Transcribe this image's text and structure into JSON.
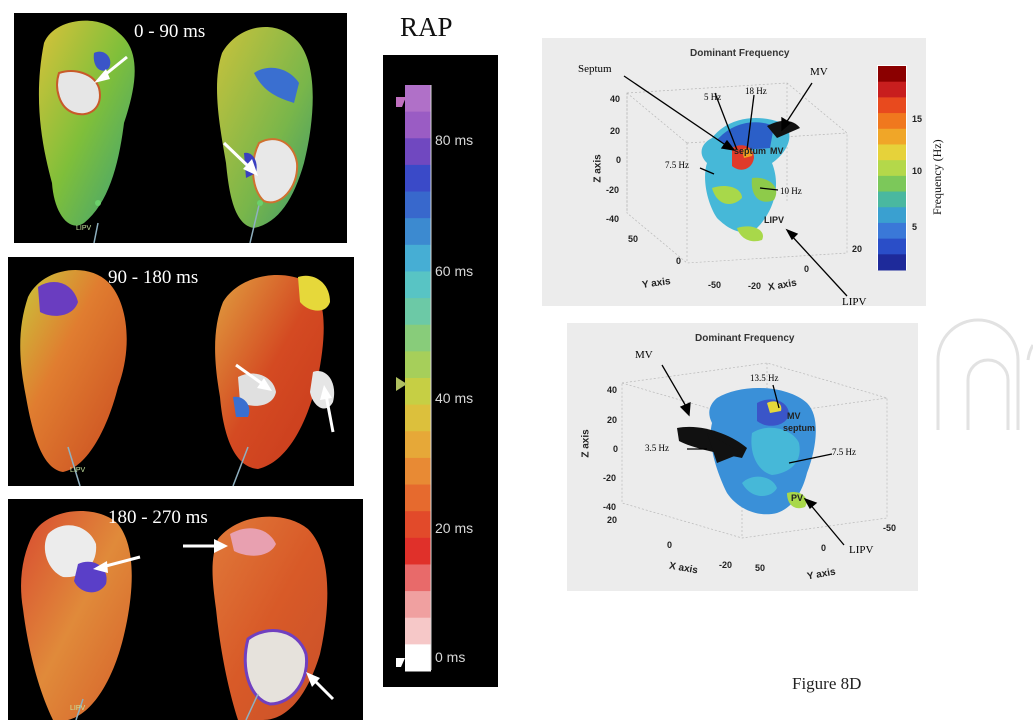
{
  "activation_panels": [
    {
      "time_label": "0 - 90 ms",
      "lipv_tag": "LIPV"
    },
    {
      "time_label": "90 - 180 ms",
      "lipv_tag": "LIPV"
    },
    {
      "time_label": "180 - 270 ms",
      "lipv_tag": "LIPV"
    }
  ],
  "rap_scale": {
    "title": "RAP",
    "ticks": [
      "80 ms",
      "60 ms",
      "40 ms",
      "20 ms",
      "0 ms"
    ]
  },
  "df_top": {
    "title": "Dominant Frequency",
    "labels": {
      "septum": "Septum",
      "mv": "MV",
      "lipv": "LIPV",
      "f5": "5 Hz",
      "f18": "18 Hz",
      "f7_5": "7.5 Hz",
      "f10": "10 Hz",
      "inner_septum": "septum",
      "inner_mv": "MV",
      "inner_lipv": "LIPV"
    },
    "axes": {
      "z": "Z axis",
      "y": "Y axis",
      "x": "X axis"
    },
    "z_ticks": [
      "40",
      "20",
      "0",
      "-20",
      "-40"
    ],
    "y_ticks": [
      "50",
      "0",
      "-50"
    ],
    "x_ticks": [
      "-20",
      "0",
      "20"
    ],
    "colorbar_ticks": [
      "15",
      "10",
      "5"
    ],
    "colorbar_label": "Frequency (Hz)"
  },
  "df_bottom": {
    "title": "Dominant Frequency",
    "labels": {
      "mv": "MV",
      "lipv": "LIPV",
      "f13_5": "13.5 Hz",
      "f3_5": "3.5 Hz",
      "f7_5": "7.5 Hz",
      "inner_mv": "MV",
      "inner_septum": "septum",
      "inner_pv": "PV"
    },
    "axes": {
      "z": "Z axis",
      "x": "X axis",
      "y": "Y axis"
    },
    "z_ticks": [
      "40",
      "20",
      "0",
      "-20",
      "-40"
    ],
    "x_ticks": [
      "20",
      "0",
      "-20"
    ],
    "y_ticks": [
      "50",
      "0",
      "-50"
    ]
  },
  "figure_label": "Figure 8D"
}
